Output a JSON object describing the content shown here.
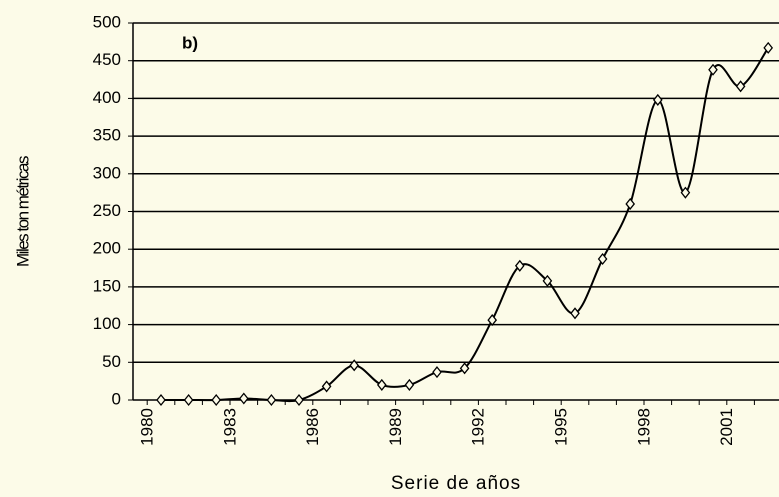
{
  "chart_data": {
    "type": "line",
    "annotation": "b)",
    "xlabel": "Serie de años",
    "ylabel": "Miles ton métricas",
    "categories": [
      "1980",
      null,
      null,
      "1983",
      null,
      null,
      "1986",
      null,
      null,
      "1989",
      null,
      null,
      "1992",
      null,
      null,
      "1995",
      null,
      null,
      "1998",
      null,
      null,
      "2001",
      null
    ],
    "series": [
      {
        "color": "#000000",
        "values": [
          0,
          0,
          0,
          2,
          0,
          0,
          18,
          46,
          20,
          20,
          37,
          42,
          106,
          178,
          158,
          115,
          187,
          260,
          398,
          275,
          438,
          416,
          467
        ]
      }
    ],
    "ylim": [
      0,
      500
    ],
    "yticks": [
      0,
      50,
      100,
      150,
      200,
      250,
      300,
      350,
      400,
      450,
      500
    ],
    "grid": true
  }
}
